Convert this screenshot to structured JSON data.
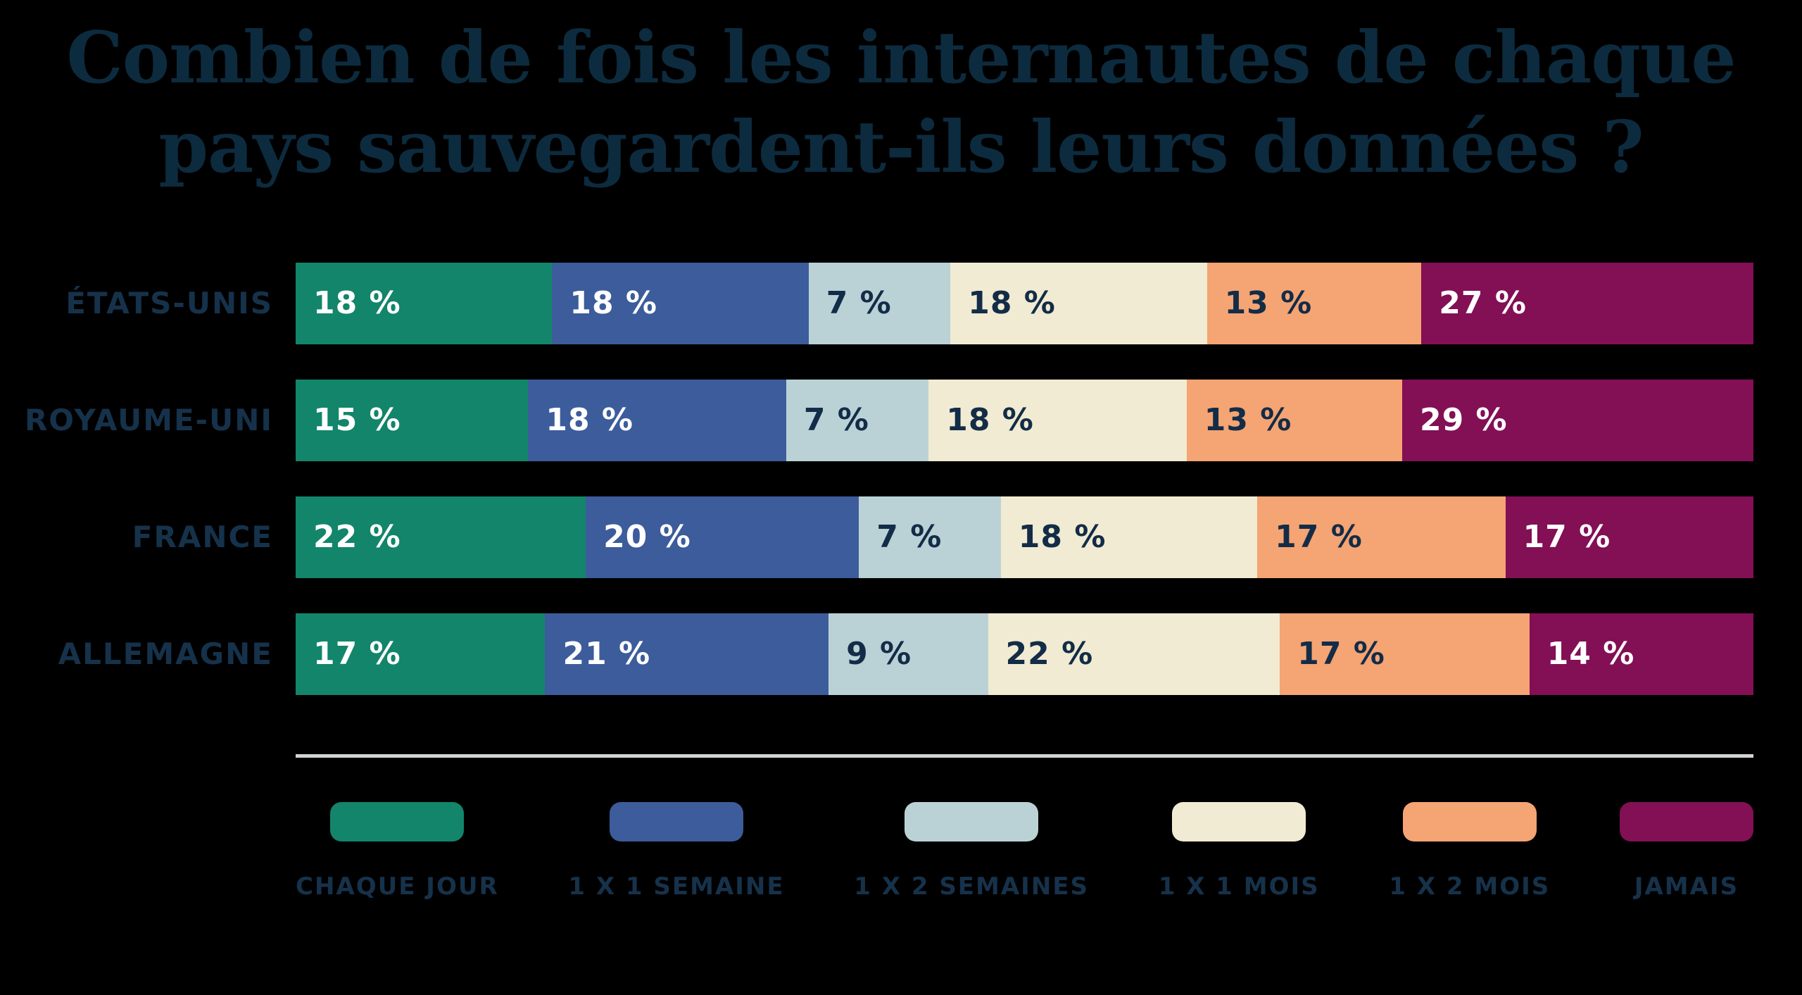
{
  "title": {
    "line1": "Combien de fois les internautes de chaque",
    "line2": "pays sauvegardent-ils leurs données ?"
  },
  "colors": {
    "background": "#000000",
    "title_text": "#0d2b3e",
    "label_text": "#16324b",
    "separator": "#d1d4d5",
    "value_on_dark": "#ffffff",
    "value_on_light": "#132c47"
  },
  "chart_data": {
    "type": "bar",
    "stacked": true,
    "orientation": "horizontal",
    "title": "Combien de fois les internautes de chaque pays sauvegardent-ils leurs données ?",
    "unit": "%",
    "value_label_format": "{v} %",
    "legend_position": "bottom",
    "grid": false,
    "categories": [
      "ÉTATS-UNIS",
      "ROYAUME-UNI",
      "FRANCE",
      "ALLEMAGNE"
    ],
    "series": [
      {
        "name": "CHAQUE JOUR",
        "color": "#12856a",
        "label_color": "#ffffff",
        "values": [
          18,
          15,
          22,
          17
        ]
      },
      {
        "name": "1 X 1 SEMAINE",
        "color": "#3c5c9b",
        "label_color": "#ffffff",
        "values": [
          18,
          18,
          20,
          21
        ]
      },
      {
        "name": "1 X 2 SEMAINES",
        "color": "#bad2d6",
        "label_color": "#132c47",
        "values": [
          7,
          7,
          7,
          9
        ]
      },
      {
        "name": "1 X 1 MOIS",
        "color": "#f0ebd2",
        "label_color": "#132c47",
        "values": [
          18,
          18,
          18,
          22
        ]
      },
      {
        "name": "1 X 2 MOIS",
        "color": "#f5a473",
        "label_color": "#132c47",
        "values": [
          13,
          13,
          17,
          17
        ]
      },
      {
        "name": "JAMAIS",
        "color": "#830f55",
        "label_color": "#ffffff",
        "values": [
          27,
          29,
          17,
          14
        ]
      }
    ]
  }
}
